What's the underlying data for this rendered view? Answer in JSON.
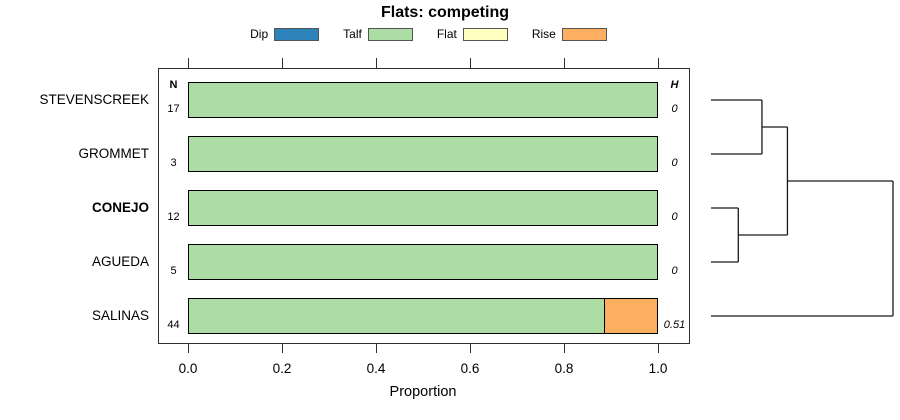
{
  "columns": {
    "n_header": "N",
    "h_header": "H"
  },
  "chart_data": {
    "type": "bar",
    "orientation": "horizontal",
    "stacked": true,
    "title": "Flats: competing",
    "xlabel": "Proportion",
    "xlim": [
      0,
      1
    ],
    "xticks": [
      0,
      0.2,
      0.4,
      0.6,
      0.8,
      1.0
    ],
    "xtick_labels": [
      "0.0",
      "0.2",
      "0.4",
      "0.6",
      "0.8",
      "1.0"
    ],
    "grid": false,
    "legend_position": "top",
    "categories": [
      "STEVENSCREEK",
      "GROMMET",
      "CONEJO",
      "AGUEDA",
      "SALINAS"
    ],
    "emphasized_category": "CONEJO",
    "n_values": [
      17,
      3,
      12,
      5,
      44
    ],
    "h_values": [
      "0",
      "0",
      "0",
      "0",
      "0.51"
    ],
    "series": [
      {
        "name": "Dip",
        "color": "#2B83BA",
        "values": [
          0,
          0,
          0,
          0,
          0
        ]
      },
      {
        "name": "Talf",
        "color": "#ABDDA4",
        "values": [
          1,
          1,
          1,
          1,
          0.886
        ]
      },
      {
        "name": "Flat",
        "color": "#FFFFBF",
        "values": [
          0,
          0,
          0,
          0,
          0
        ]
      },
      {
        "name": "Rise",
        "color": "#FDAE61",
        "values": [
          0,
          0,
          0,
          0,
          0.114
        ]
      }
    ],
    "dendrogram": {
      "leaves": [
        "STEVENSCREEK",
        "GROMMET",
        "CONEJO",
        "AGUEDA",
        "SALINAS"
      ],
      "merges": [
        {
          "a": "L0",
          "b": "L1",
          "height": 0.28
        },
        {
          "a": "L2",
          "b": "L3",
          "height": 0.15
        },
        {
          "a": "M0",
          "b": "M1",
          "height": 0.42
        },
        {
          "a": "M2",
          "b": "L4",
          "height": 1.0
        }
      ]
    }
  }
}
